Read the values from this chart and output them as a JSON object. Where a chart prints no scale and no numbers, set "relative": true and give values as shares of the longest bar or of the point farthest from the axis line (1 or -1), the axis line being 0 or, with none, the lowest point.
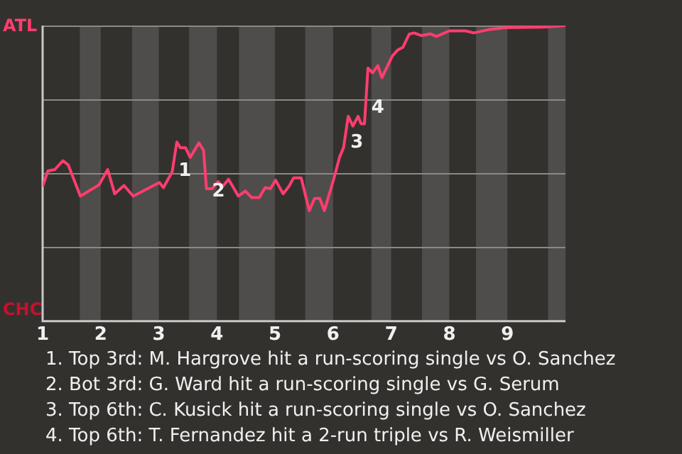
{
  "chart_data": {
    "type": "line",
    "color": "#ff3d6e",
    "relative": true,
    "x": [
      1,
      1.09,
      1.21,
      1.35,
      1.44,
      1.65,
      1.97,
      2.12,
      2.24,
      2.4,
      2.56,
      3.01,
      3.08,
      3.23,
      3.31,
      3.37,
      3.46,
      3.54,
      3.69,
      3.77,
      3.82,
      3.92,
      4.02,
      4.1,
      4.2,
      4.37,
      4.49,
      4.6,
      4.73,
      4.83,
      4.92,
      5.01,
      5.14,
      5.24,
      5.32,
      5.45,
      5.59,
      5.68,
      5.77,
      5.85,
      6.01,
      6.11,
      6.18,
      6.26,
      6.34,
      6.43,
      6.48,
      6.54,
      6.6,
      6.68,
      6.77,
      6.84,
      7.02,
      7.11,
      7.2,
      7.31,
      7.39,
      7.52,
      7.67,
      7.78,
      8,
      8.28,
      8.42,
      8.7,
      8.97,
      9.67,
      10
    ],
    "values": [
      0.456,
      0.508,
      0.513,
      0.543,
      0.529,
      0.423,
      0.461,
      0.513,
      0.431,
      0.459,
      0.423,
      0.469,
      0.452,
      0.505,
      0.606,
      0.587,
      0.587,
      0.554,
      0.603,
      0.578,
      0.448,
      0.448,
      0.472,
      0.456,
      0.48,
      0.423,
      0.44,
      0.418,
      0.418,
      0.452,
      0.448,
      0.477,
      0.431,
      0.456,
      0.485,
      0.485,
      0.374,
      0.415,
      0.415,
      0.374,
      0.48,
      0.554,
      0.587,
      0.693,
      0.66,
      0.693,
      0.668,
      0.668,
      0.856,
      0.84,
      0.864,
      0.824,
      0.897,
      0.917,
      0.926,
      0.971,
      0.975,
      0.966,
      0.972,
      0.963,
      0.982,
      0.982,
      0.975,
      0.987,
      0.993,
      0.995,
      1
    ],
    "xlim": [
      1,
      10
    ],
    "xticks": [
      1,
      2,
      3,
      4,
      5,
      6,
      7,
      8,
      9
    ],
    "ref_lines": [
      {
        "axis": "y",
        "value": 0.25,
        "color": "#8a8986"
      },
      {
        "axis": "y",
        "value": 0.5,
        "color": "#8a8986"
      },
      {
        "axis": "y",
        "value": 0.75,
        "color": "#8a8986"
      },
      {
        "axis": "y",
        "value": 1,
        "color": "#8a8986"
      }
    ],
    "marker": "none",
    "line_style": "solid",
    "bands": [
      {
        "axis": "x",
        "from": 1.64,
        "to": 2,
        "color": "#4e4d4b"
      },
      {
        "axis": "x",
        "from": 2.54,
        "to": 3,
        "color": "#4e4d4b"
      },
      {
        "axis": "x",
        "from": 3.52,
        "to": 4,
        "color": "#4e4d4b"
      },
      {
        "axis": "x",
        "from": 4.38,
        "to": 5,
        "color": "#4e4d4b"
      },
      {
        "axis": "x",
        "from": 5.52,
        "to": 6,
        "color": "#4e4d4b"
      },
      {
        "axis": "x",
        "from": 6.66,
        "to": 7,
        "color": "#4e4d4b"
      },
      {
        "axis": "x",
        "from": 7.53,
        "to": 8,
        "color": "#4e4d4b"
      },
      {
        "axis": "x",
        "from": 8.46,
        "to": 9,
        "color": "#4e4d4b"
      },
      {
        "axis": "x",
        "from": 9.7,
        "to": 10,
        "color": "#4e4d4b"
      }
    ],
    "annotations": [
      "ATL",
      "CHC",
      {
        "text": "1",
        "x": 3.24,
        "y": 0.518
      },
      {
        "text": "2",
        "x": 3.82,
        "y": 0.448
      },
      {
        "text": "3",
        "x": 6.2,
        "y": 0.613
      },
      {
        "text": "4",
        "x": 6.56,
        "y": 0.731
      },
      "1. Top 3rd: M. Hargrove hit a run-scoring single vs O. Sanchez",
      "2. Bot 3rd: G. Ward hit a run-scoring single vs G. Serum",
      "3. Top 6th: C. Kusick hit a run-scoring single vs O. Sanchez",
      "4. Top 6th: T. Fernandez hit a 2-run triple vs R. Weismiller"
    ]
  }
}
